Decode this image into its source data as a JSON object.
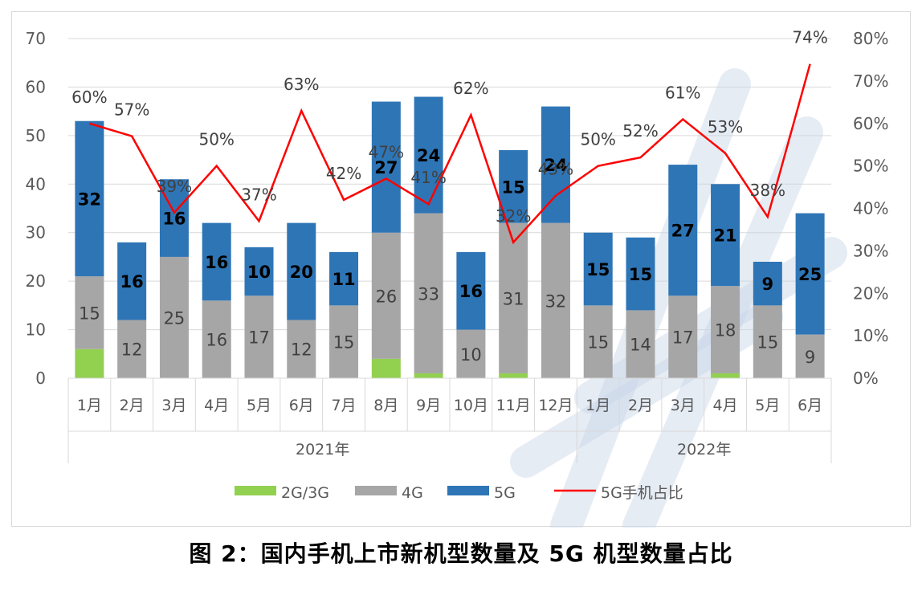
{
  "chart_data": {
    "type": "bar",
    "stacked": true,
    "title": "",
    "caption": "图 2：国内手机上市新机型数量及 5G 机型数量占比",
    "categories": [
      "1月",
      "2月",
      "3月",
      "4月",
      "5月",
      "6月",
      "7月",
      "8月",
      "9月",
      "10月",
      "11月",
      "12月",
      "1月",
      "2月",
      "3月",
      "4月",
      "5月",
      "6月"
    ],
    "groups": [
      {
        "label": "2021年",
        "start": 0,
        "end": 11
      },
      {
        "label": "2022年",
        "start": 12,
        "end": 17
      }
    ],
    "series": [
      {
        "name": "2G/3G",
        "color": "#92d050",
        "values": [
          6,
          0,
          0,
          0,
          0,
          0,
          0,
          4,
          1,
          0,
          1,
          0,
          0,
          0,
          0,
          1,
          0,
          0
        ]
      },
      {
        "name": "4G",
        "color": "#a6a6a6",
        "values": [
          15,
          12,
          25,
          16,
          17,
          12,
          15,
          26,
          33,
          10,
          31,
          32,
          15,
          14,
          17,
          18,
          15,
          9
        ]
      },
      {
        "name": "5G",
        "color": "#2e75b6",
        "values": [
          32,
          16,
          16,
          16,
          10,
          20,
          11,
          27,
          24,
          16,
          15,
          24,
          15,
          15,
          27,
          21,
          9,
          25
        ]
      }
    ],
    "line_series": {
      "name": "5G手机占比",
      "color": "#ff0000",
      "axis": "right",
      "values": [
        60,
        57,
        39,
        50,
        37,
        63,
        42,
        47,
        41,
        62,
        32,
        43,
        50,
        52,
        61,
        53,
        38,
        74
      ],
      "labels": [
        "60%",
        "57%",
        "39%",
        "50%",
        "37%",
        "63%",
        "42%",
        "47%",
        "41%",
        "62%",
        "32%",
        "43%",
        "50%",
        "52%",
        "61%",
        "53%",
        "38%",
        "74%"
      ]
    },
    "left_axis": {
      "min": 0,
      "max": 70,
      "step": 10,
      "ticks": [
        "0",
        "10",
        "20",
        "30",
        "40",
        "50",
        "60",
        "70"
      ]
    },
    "right_axis": {
      "min": 0,
      "max": 80,
      "step": 10,
      "ticks": [
        "0%",
        "10%",
        "20%",
        "30%",
        "40%",
        "50%",
        "60%",
        "70%",
        "80%"
      ]
    },
    "legend_position": "bottom",
    "grid": true
  }
}
